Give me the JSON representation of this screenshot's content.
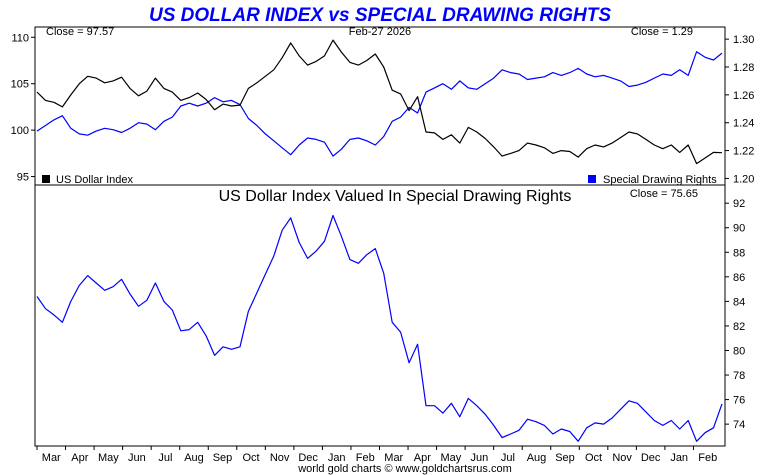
{
  "chart_data": [
    {
      "type": "line",
      "title": "US DOLLAR INDEX vs SPECIAL DRAWING RIGHTS",
      "date_label": "Feb-27  2026",
      "close_left": "Close = 97.57",
      "close_right": "Close = 1.29",
      "left_axis": {
        "ylim": [
          94.2,
          111.0
        ],
        "ticks": [
          "110",
          "105",
          "100",
          "95"
        ]
      },
      "right_axis": {
        "ylim": [
          1.196,
          1.308
        ],
        "ticks": [
          "1.30",
          "1.28",
          "1.26",
          "1.24",
          "1.22",
          "1.20"
        ]
      },
      "legend": {
        "placement": "bottom",
        "left": "US Dollar Index",
        "right": "Special Drawing Rights"
      },
      "grid": false,
      "series": [
        {
          "name": "US Dollar Index",
          "axis": "left",
          "color": "#000000",
          "values": [
            104.1,
            103.2,
            103.0,
            102.5,
            103.8,
            105.0,
            105.8,
            105.6,
            105.1,
            105.3,
            105.7,
            104.5,
            103.7,
            104.2,
            105.6,
            104.5,
            104.1,
            103.2,
            103.5,
            104.0,
            103.3,
            102.2,
            102.8,
            102.6,
            102.7,
            104.5,
            105.1,
            105.8,
            106.5,
            107.8,
            109.4,
            108.0,
            107.0,
            107.4,
            108.0,
            109.7,
            108.4,
            107.3,
            107.0,
            107.5,
            108.2,
            106.8,
            104.3,
            103.9,
            102.1,
            103.6,
            99.8,
            99.7,
            99.0,
            99.5,
            98.6,
            100.3,
            99.8,
            99.1,
            98.2,
            97.2,
            97.5,
            97.8,
            98.6,
            98.4,
            98.1,
            97.5,
            97.8,
            97.7,
            97.1,
            98.0,
            98.4,
            98.2,
            98.6,
            99.2,
            99.8,
            99.6,
            99.0,
            98.4,
            98.0,
            98.4,
            97.6,
            98.4,
            96.4,
            97.0,
            97.6,
            97.57
          ]
        },
        {
          "name": "Special Drawing Rights",
          "axis": "right",
          "color": "#0000ff",
          "values": [
            1.234,
            1.238,
            1.242,
            1.245,
            1.236,
            1.232,
            1.231,
            1.234,
            1.236,
            1.235,
            1.233,
            1.236,
            1.24,
            1.239,
            1.235,
            1.241,
            1.244,
            1.252,
            1.254,
            1.252,
            1.254,
            1.258,
            1.255,
            1.256,
            1.253,
            1.243,
            1.238,
            1.232,
            1.227,
            1.222,
            1.217,
            1.224,
            1.229,
            1.228,
            1.226,
            1.216,
            1.221,
            1.228,
            1.229,
            1.227,
            1.224,
            1.23,
            1.241,
            1.244,
            1.251,
            1.247,
            1.262,
            1.265,
            1.268,
            1.264,
            1.27,
            1.265,
            1.264,
            1.268,
            1.272,
            1.278,
            1.276,
            1.275,
            1.271,
            1.272,
            1.273,
            1.276,
            1.274,
            1.276,
            1.279,
            1.275,
            1.273,
            1.274,
            1.272,
            1.27,
            1.266,
            1.267,
            1.269,
            1.272,
            1.275,
            1.274,
            1.278,
            1.274,
            1.291,
            1.287,
            1.285,
            1.29
          ]
        }
      ]
    },
    {
      "type": "line",
      "title": "US Dollar Index Valued In Special Drawing Rights",
      "close": "Close = 75.65",
      "ylim": [
        72.3,
        93.4
      ],
      "y_ticks": [
        "92",
        "90",
        "88",
        "86",
        "84",
        "82",
        "80",
        "78",
        "76",
        "74"
      ],
      "grid": false,
      "series": [
        {
          "name": "US Dollar Index Valued In Special Drawing Rights",
          "color": "#0000ff",
          "values": [
            84.4,
            83.4,
            82.9,
            82.3,
            84.0,
            85.3,
            86.1,
            85.5,
            84.9,
            85.2,
            85.8,
            84.6,
            83.6,
            84.1,
            85.5,
            84.0,
            83.3,
            81.6,
            81.7,
            82.3,
            81.2,
            79.6,
            80.3,
            80.1,
            80.3,
            83.2,
            84.7,
            86.2,
            87.7,
            89.8,
            90.8,
            88.8,
            87.5,
            88.1,
            88.9,
            91.0,
            89.3,
            87.4,
            87.1,
            87.8,
            88.3,
            86.3,
            82.3,
            81.5,
            79.0,
            80.5,
            75.5,
            75.5,
            74.9,
            75.7,
            74.6,
            76.1,
            75.5,
            74.8,
            73.9,
            72.9,
            73.2,
            73.5,
            74.4,
            74.2,
            73.9,
            73.2,
            73.6,
            73.4,
            72.6,
            73.7,
            74.1,
            74.0,
            74.5,
            75.2,
            75.9,
            75.7,
            75.0,
            74.3,
            73.9,
            74.3,
            73.6,
            74.3,
            72.6,
            73.3,
            73.7,
            75.65
          ]
        }
      ]
    }
  ],
  "months": [
    "Mar",
    "Apr",
    "May",
    "Jun",
    "Jul",
    "Aug",
    "Sep",
    "Oct",
    "Nov",
    "Dec",
    "Jan",
    "Feb",
    "Mar",
    "Apr",
    "May",
    "Jun",
    "Jul",
    "Aug",
    "Sep",
    "Oct",
    "Nov",
    "Dec",
    "Jan",
    "Feb"
  ],
  "footer": "world gold charts © www.goldchartsrus.com",
  "colors": {
    "title": "#0000ff",
    "dollar": "#000000",
    "sdr": "#0000ff"
  }
}
